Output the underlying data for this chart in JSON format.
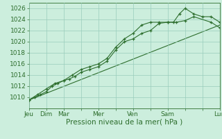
{
  "background_color": "#cceedd",
  "plot_bg_color": "#cceedd",
  "line_color": "#2d6e2d",
  "grid_color": "#99ccbb",
  "ylim": [
    1008,
    1027
  ],
  "yticks": [
    1010,
    1012,
    1014,
    1016,
    1018,
    1020,
    1022,
    1024,
    1026
  ],
  "xlabel": "Pression niveau de la mer( hPa )",
  "xlabel_fontsize": 7.5,
  "tick_fontsize": 6.5,
  "xtick_labels": [
    "Jeu",
    "Dim",
    "Mar",
    "",
    "Mer",
    "",
    "Ven",
    "",
    "Sam",
    "",
    "",
    "Lun"
  ],
  "xtick_positions": [
    0,
    1,
    2,
    3,
    4,
    5,
    6,
    7,
    8,
    9,
    10,
    11
  ],
  "line1_x": [
    0,
    0.33,
    0.67,
    1.0,
    1.33,
    1.67,
    2.0,
    2.33,
    2.67,
    3.0,
    3.5,
    4.0,
    4.5,
    5.0,
    5.5,
    6.0,
    6.5,
    7.0,
    7.5,
    8.0,
    8.33,
    8.67,
    9.0,
    9.5,
    10.0,
    10.5,
    11.0
  ],
  "line1_y": [
    1009.5,
    1010.0,
    1010.5,
    1011.0,
    1012.0,
    1012.5,
    1013.0,
    1013.3,
    1013.8,
    1014.5,
    1015.0,
    1015.5,
    1016.5,
    1018.5,
    1020.0,
    1020.5,
    1021.5,
    1022.0,
    1023.3,
    1023.5,
    1023.5,
    1025.0,
    1026.0,
    1025.0,
    1024.5,
    1024.5,
    1023.5
  ],
  "line2_x": [
    0,
    0.5,
    1.0,
    1.5,
    2.0,
    2.5,
    3.0,
    3.5,
    4.0,
    4.5,
    5.0,
    5.5,
    6.0,
    6.5,
    7.0,
    7.5,
    8.0,
    8.5,
    9.0,
    9.5,
    10.5,
    11.0
  ],
  "line2_y": [
    1009.5,
    1010.5,
    1011.5,
    1012.5,
    1013.0,
    1014.0,
    1015.0,
    1015.5,
    1016.0,
    1017.0,
    1019.0,
    1020.5,
    1021.5,
    1023.0,
    1023.5,
    1023.5,
    1023.5,
    1023.5,
    1023.8,
    1024.5,
    1023.5,
    1022.5
  ],
  "line3_x": [
    0,
    11.0
  ],
  "line3_y": [
    1009.5,
    1023.0
  ]
}
